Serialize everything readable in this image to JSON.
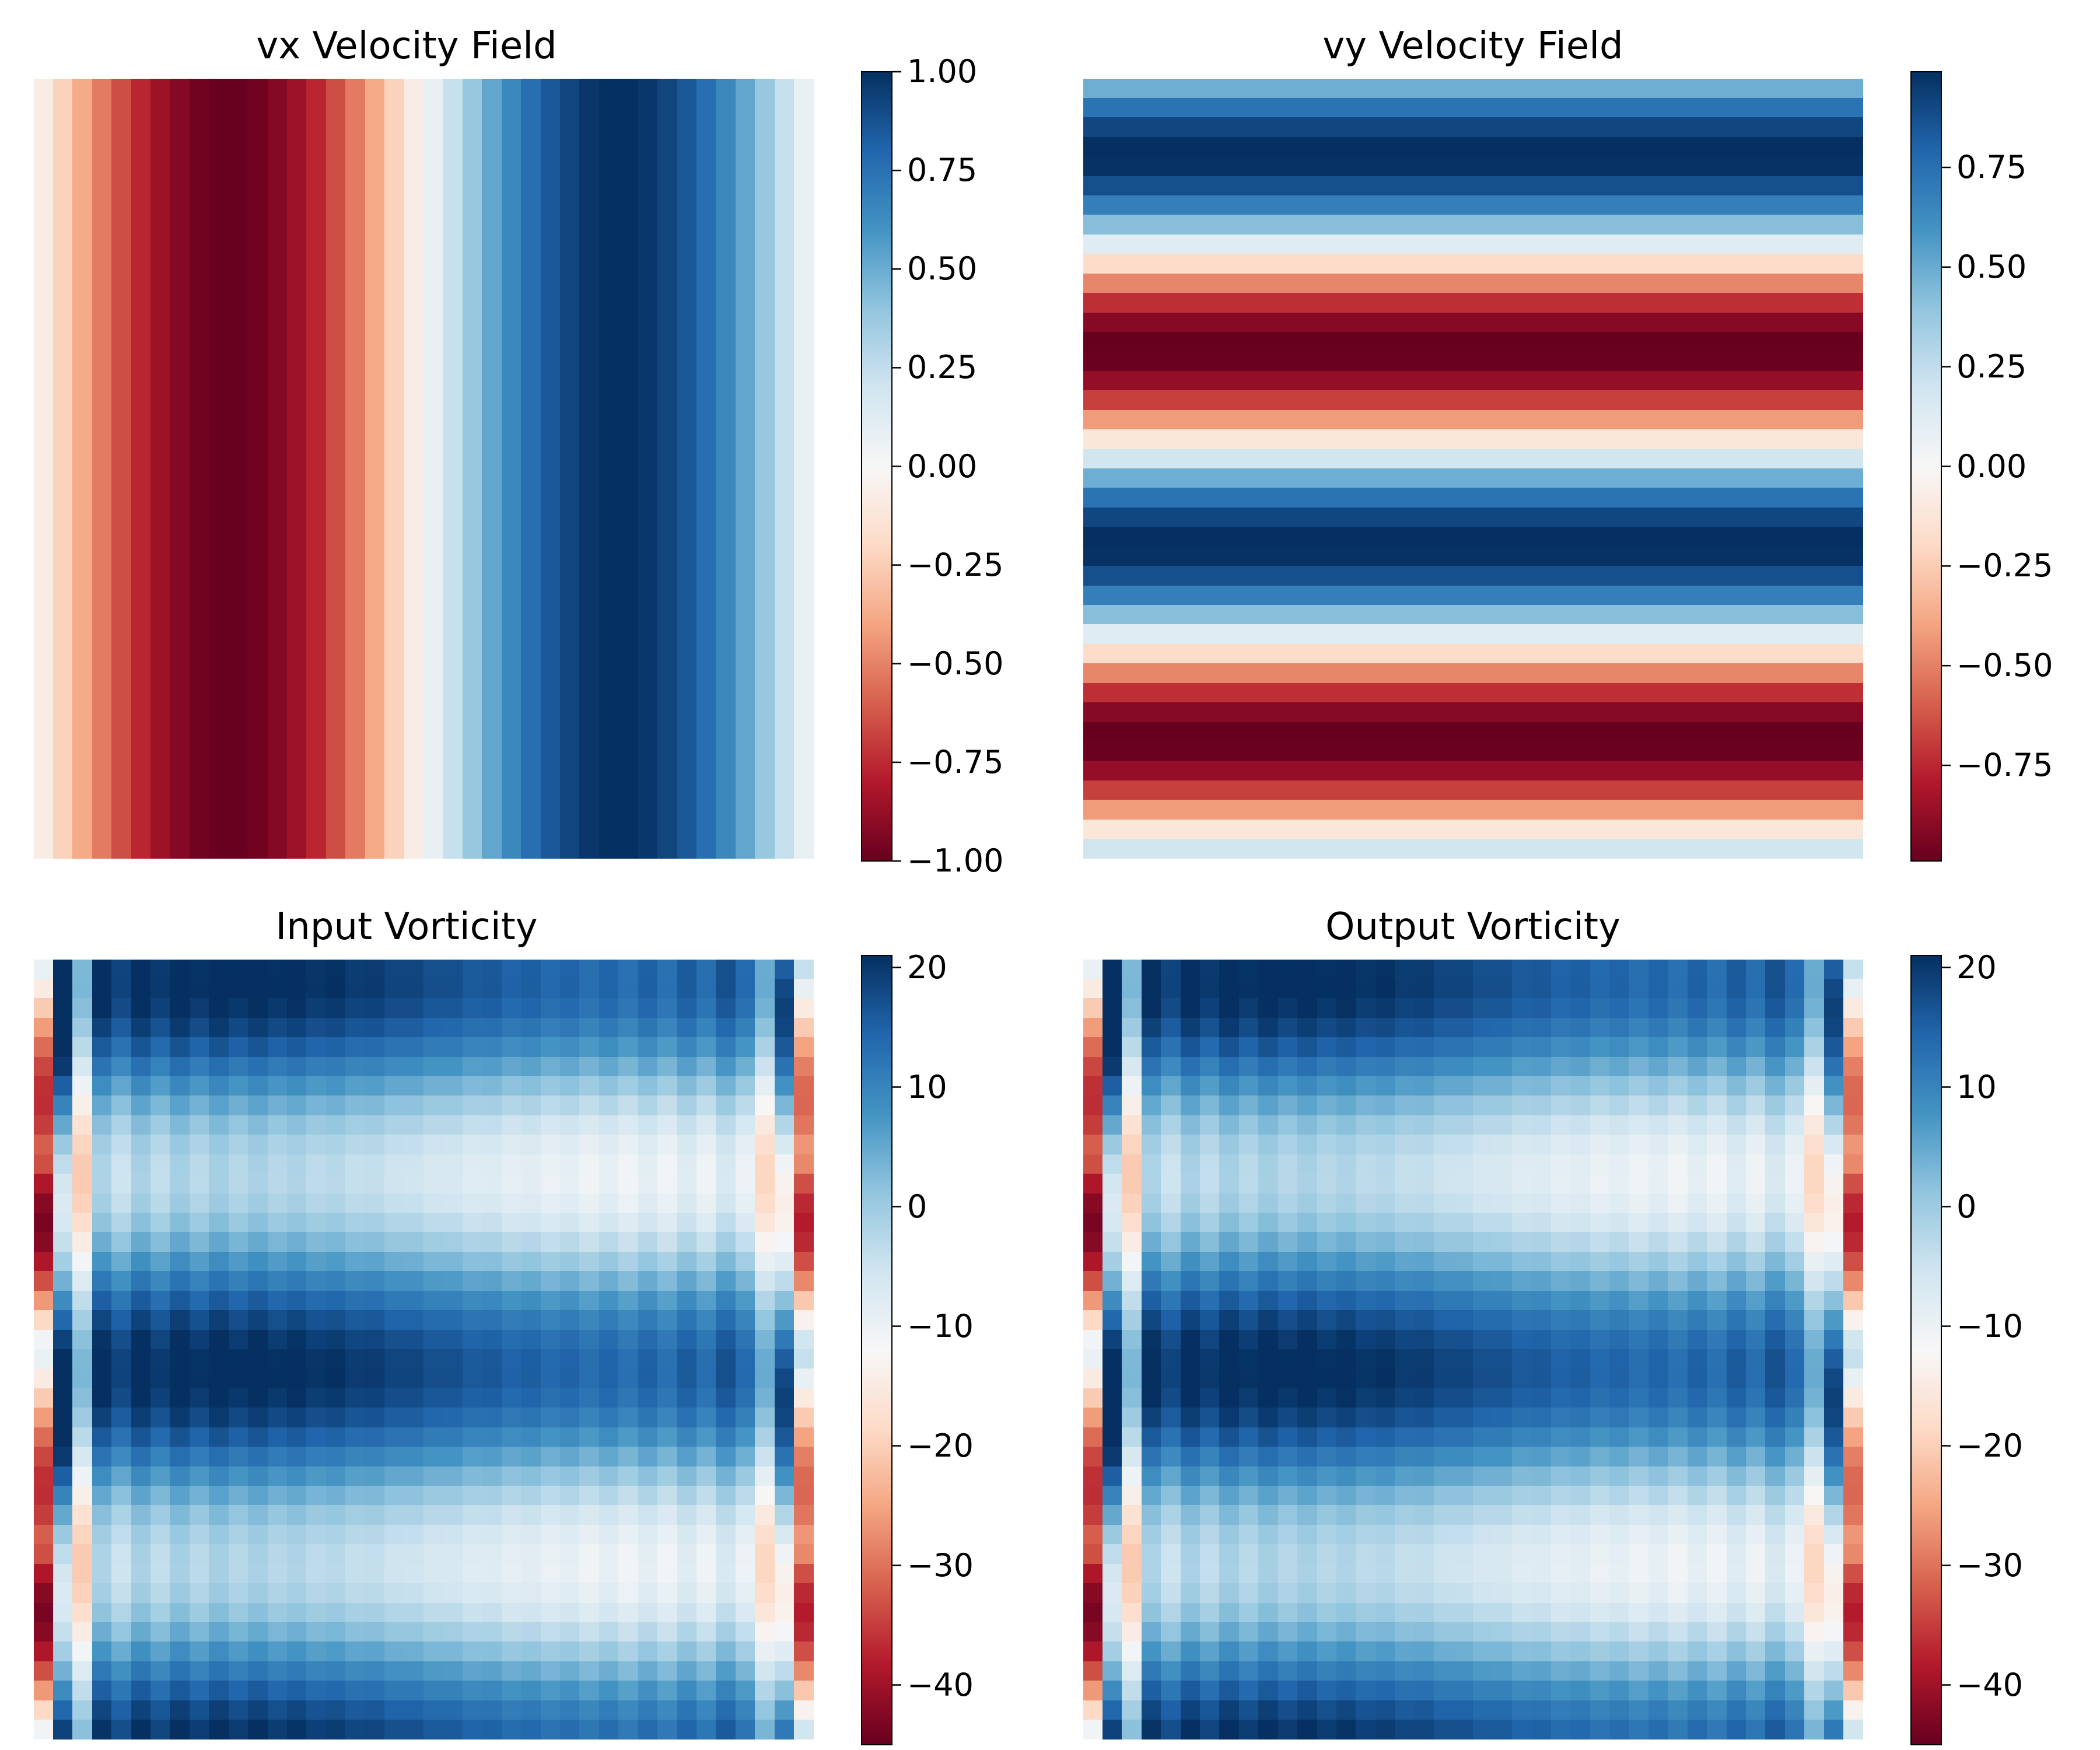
{
  "chart_data": [
    {
      "type": "heatmap",
      "title": "vx Velocity Field",
      "colormap": "RdBu",
      "grid": [
        40,
        40
      ],
      "field": "vx",
      "clim": [
        -1.0,
        1.0
      ],
      "colorbar_ticks": [
        -1.0,
        -0.75,
        -0.5,
        -0.25,
        0.0,
        0.25,
        0.5,
        0.75,
        1.0
      ],
      "colorbar_tick_labels": [
        "−1.00",
        "−0.75",
        "−0.50",
        "−0.25",
        "0.00",
        "0.25",
        "0.50",
        "0.75",
        "1.00"
      ]
    },
    {
      "type": "heatmap",
      "title": "vy Velocity Field",
      "colormap": "RdBu",
      "grid": [
        40,
        40
      ],
      "field": "vy",
      "clim": [
        -0.99,
        0.99
      ],
      "colorbar_ticks": [
        -0.75,
        -0.5,
        -0.25,
        0.0,
        0.25,
        0.5,
        0.75
      ],
      "colorbar_tick_labels": [
        "−0.75",
        "−0.50",
        "−0.25",
        "0.00",
        "0.25",
        "0.50",
        "0.75"
      ]
    },
    {
      "type": "heatmap",
      "title": "Input Vorticity",
      "colormap": "RdBu",
      "grid": [
        40,
        40
      ],
      "field": "vorticity",
      "clim": [
        -45,
        21
      ],
      "colorbar_ticks": [
        -40,
        -30,
        -20,
        -10,
        0,
        10,
        20
      ],
      "colorbar_tick_labels": [
        "−40",
        "−30",
        "−20",
        "−10",
        "0",
        "10",
        "20"
      ]
    },
    {
      "type": "heatmap",
      "title": "Output Vorticity",
      "colormap": "RdBu",
      "grid": [
        40,
        40
      ],
      "field": "vorticity",
      "clim": [
        -45,
        21
      ],
      "colorbar_ticks": [
        -40,
        -30,
        -20,
        -10,
        0,
        10,
        20
      ],
      "colorbar_tick_labels": [
        "−40",
        "−30",
        "−20",
        "−10",
        "0",
        "10",
        "20"
      ]
    }
  ]
}
